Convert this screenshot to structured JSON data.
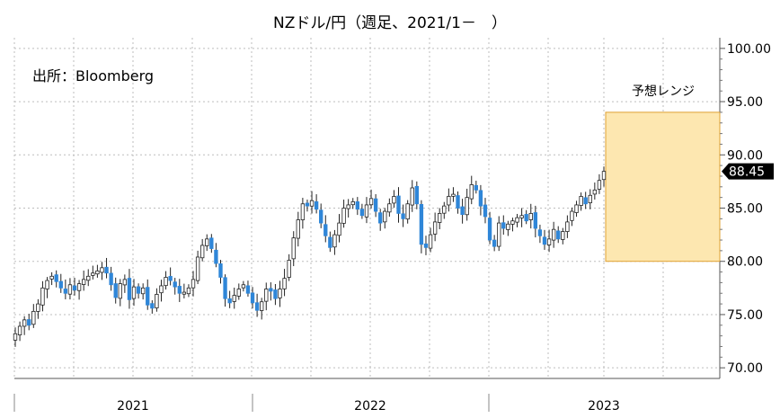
{
  "title": "NZドル/円（週足、2021/1－　）",
  "source": "出所：Bloomberg",
  "range_label": "予想レンジ",
  "chart_data": {
    "type": "candlestick",
    "title": "NZドル/円（週足、2021/1－　）",
    "frequency": "weekly",
    "x_tick_labels": [
      "2021",
      "2022",
      "2023"
    ],
    "y_tick_labels": [
      "70.00",
      "75.00",
      "80.00",
      "85.00",
      "90.00",
      "95.00",
      "100.00"
    ],
    "ylim": [
      69,
      101
    ],
    "y_axis_position": "right",
    "grid": true,
    "last_value": 88.45,
    "last_value_label": "88.45",
    "up_color": "#ffffff",
    "down_color": "#2f86d8",
    "forecast_range": {
      "label": "予想レンジ",
      "low": 80.0,
      "high": 94.0,
      "fill": "#fde7b0",
      "stroke": "#e0a030"
    },
    "weekly_close": [
      73.2,
      73.9,
      74.5,
      74.0,
      75.3,
      76.0,
      77.5,
      78.2,
      78.6,
      78.1,
      77.5,
      77.0,
      77.8,
      77.3,
      77.9,
      78.3,
      78.6,
      78.9,
      79.1,
      79.4,
      78.9,
      77.8,
      76.6,
      77.9,
      78.3,
      76.4,
      77.6,
      77.0,
      77.5,
      75.9,
      75.6,
      76.9,
      77.7,
      78.5,
      78.2,
      77.6,
      77.0,
      77.1,
      77.5,
      78.3,
      80.4,
      81.5,
      82.1,
      81.2,
      79.8,
      78.5,
      76.5,
      76.1,
      76.8,
      77.4,
      77.8,
      77.0,
      76.1,
      75.4,
      76.2,
      77.4,
      77.2,
      76.5,
      77.4,
      78.4,
      80.1,
      82.2,
      83.9,
      85.4,
      85.2,
      85.7,
      84.9,
      83.6,
      82.4,
      81.3,
      82.5,
      83.6,
      85.0,
      85.3,
      85.6,
      84.9,
      84.3,
      85.3,
      85.9,
      84.7,
      83.6,
      84.7,
      85.4,
      86.1,
      84.5,
      84.0,
      85.4,
      86.9,
      85.4,
      81.6,
      81.3,
      82.5,
      83.7,
      84.5,
      85.2,
      86.1,
      86.3,
      85.0,
      84.4,
      86.0,
      87.2,
      86.7,
      85.2,
      84.2,
      82.0,
      81.4,
      83.6,
      83.1,
      83.5,
      83.8,
      84.1,
      84.3,
      83.8,
      84.5,
      83.1,
      82.4,
      81.6,
      82.1,
      83.0,
      82.1,
      82.8,
      83.7,
      84.7,
      85.3,
      86.1,
      85.4,
      86.2,
      86.7,
      87.6,
      88.45
    ]
  }
}
